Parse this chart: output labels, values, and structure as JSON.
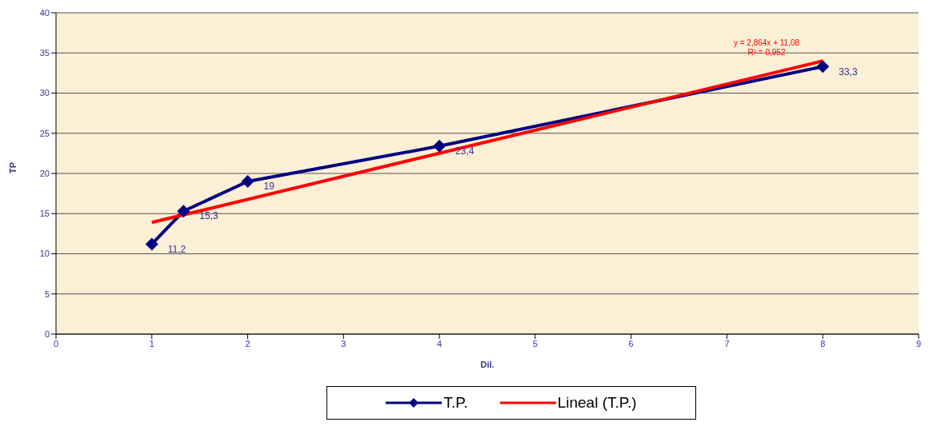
{
  "chart_data": {
    "type": "line",
    "xlabel": "Dil.",
    "ylabel": "TP",
    "xlim": [
      0,
      9
    ],
    "xticks": [
      0,
      1,
      2,
      3,
      4,
      5,
      6,
      7,
      8,
      9
    ],
    "ylim": [
      0,
      40
    ],
    "yticks": [
      0,
      5,
      10,
      15,
      20,
      25,
      30,
      35,
      40
    ],
    "grid": "y",
    "legend": "bottom",
    "series": [
      {
        "name": "T.P.",
        "color": "#000080",
        "marker": "diamond",
        "x": [
          1,
          1.33,
          2,
          4,
          8
        ],
        "values": [
          11.2,
          15.3,
          19,
          23.4,
          33.3
        ],
        "value_labels": [
          "11,2",
          "15,3",
          "19",
          "23,4",
          "33,3"
        ]
      },
      {
        "name": "Lineal (T.P.)",
        "color": "#ff0000",
        "marker": "none",
        "x": [
          1,
          8
        ],
        "values": [
          13.9,
          34
        ]
      }
    ],
    "annotations": [
      "y = 2,864x + 11,08",
      "R² = 0,952"
    ]
  }
}
